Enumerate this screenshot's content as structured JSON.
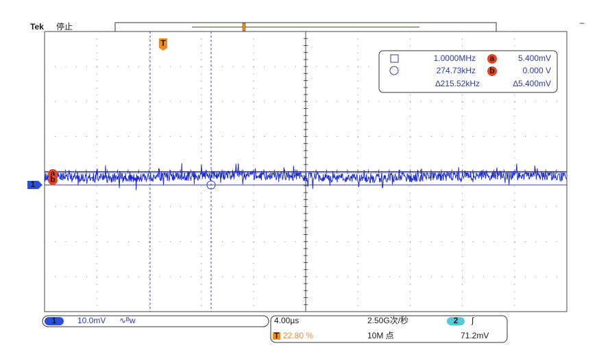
{
  "header": {
    "brand": "Tek",
    "status": "停止",
    "corner": "–"
  },
  "markers": {
    "trigger": "T",
    "channel": "1",
    "cursor_a": "a",
    "cursor_b": "b"
  },
  "readout": {
    "row1": {
      "freq": "1.0000MHz",
      "label": "a",
      "value": "5.400mV"
    },
    "row2": {
      "freq": "274.73kHz",
      "label": "b",
      "value": "0.000 V"
    },
    "row3": {
      "freq_delta": "∆215.52kHz",
      "value_delta": "∆5.400mV"
    }
  },
  "channel_box": {
    "number": "1",
    "scale": "10.0mV",
    "icon": "∿ᴮw"
  },
  "timing_box": {
    "timebase": "4.00µs",
    "trigger_icon": "T",
    "position": "22.80 %",
    "sample_rate": "2.50G次/秒",
    "record": "10M 点",
    "source": "2",
    "slope": "∫",
    "level": "71.2mV"
  }
}
